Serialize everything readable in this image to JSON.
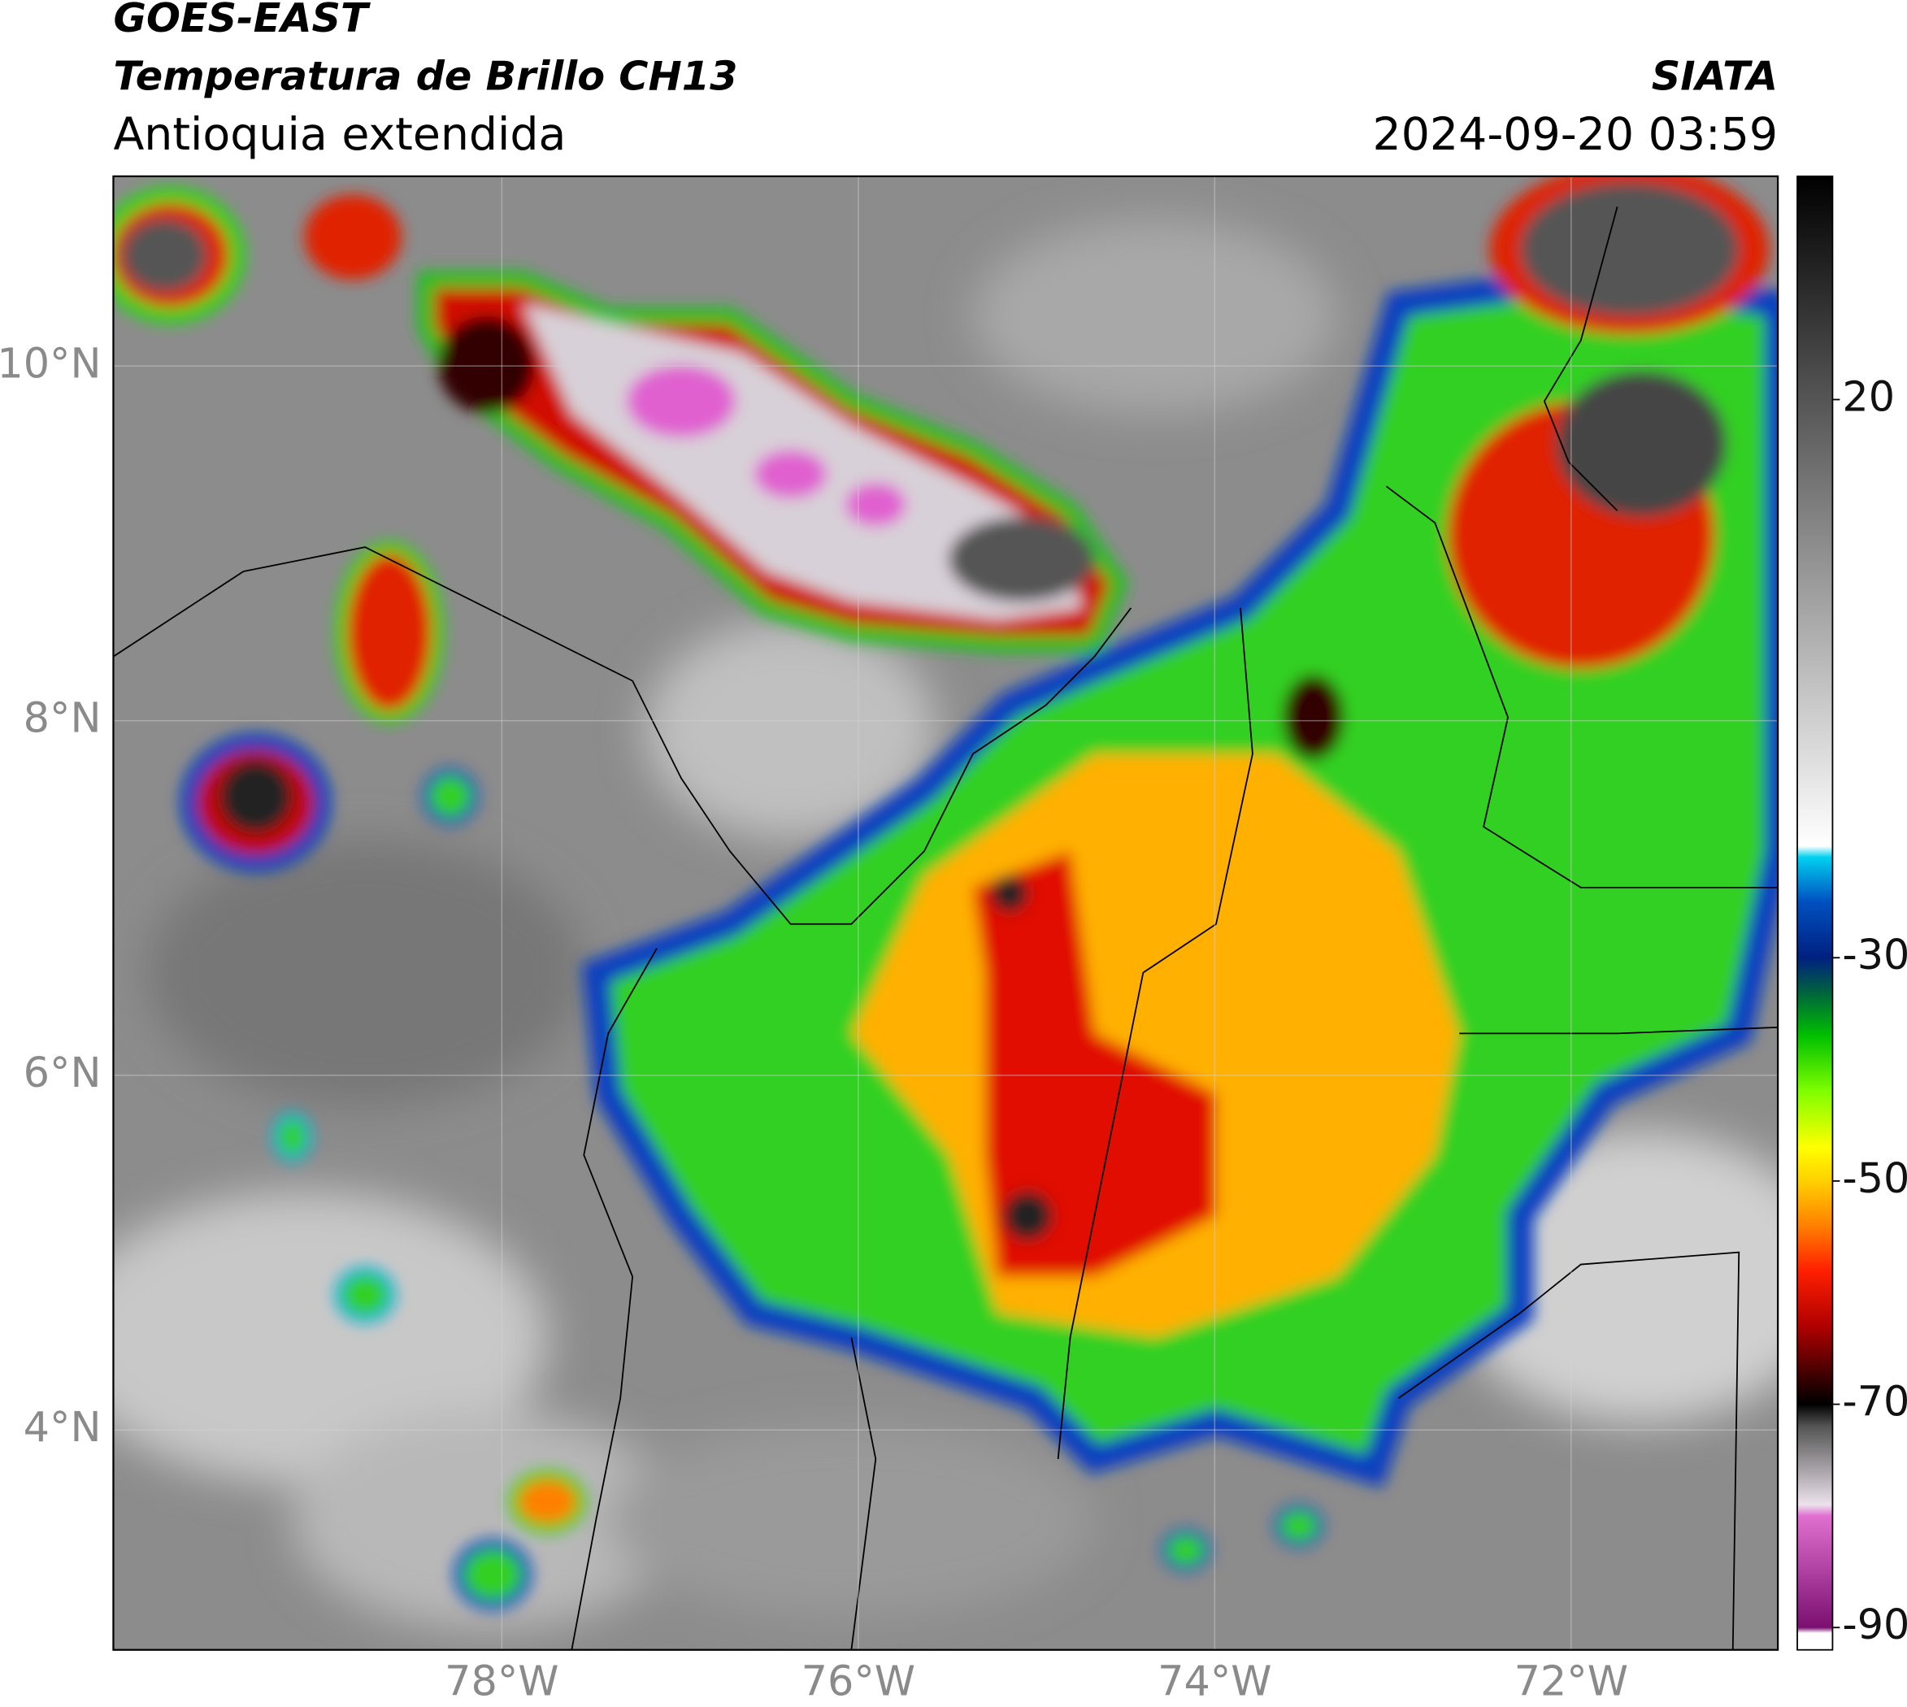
{
  "header": {
    "title": "GOES-EAST",
    "subtitle": "Temperatura de Brillo CH13",
    "region": "Antioquia extendida",
    "source": "SIATA",
    "datetime": "2024-09-20 03:59"
  },
  "map": {
    "xlim": [
      -80.18,
      -70.84
    ],
    "ylim": [
      2.76,
      11.07
    ],
    "xticks": [
      {
        "value": -78,
        "label": "78°W"
      },
      {
        "value": -76,
        "label": "76°W"
      },
      {
        "value": -74,
        "label": "74°W"
      },
      {
        "value": -72,
        "label": "72°W"
      }
    ],
    "yticks": [
      {
        "value": 10,
        "label": "10°N"
      },
      {
        "value": 8,
        "label": "8°N"
      },
      {
        "value": 6,
        "label": "6°N"
      },
      {
        "value": 4,
        "label": "4°N"
      }
    ],
    "grid": true
  },
  "colorbar": {
    "lim": [
      -92,
      40
    ],
    "ticks": [
      20,
      -30,
      -50,
      -70,
      -90
    ],
    "stops": [
      [
        -92,
        "#ffffff"
      ],
      [
        -90.5,
        "#ffffff"
      ],
      [
        -90,
        "#7a1070"
      ],
      [
        -80,
        "#e070d0"
      ],
      [
        -79,
        "#ece2ec"
      ],
      [
        -72,
        "#555555"
      ],
      [
        -70,
        "#000000"
      ],
      [
        -68,
        "#300000"
      ],
      [
        -63,
        "#b00000"
      ],
      [
        -58,
        "#ff2000"
      ],
      [
        -54,
        "#ff8000"
      ],
      [
        -50,
        "#ffd000"
      ],
      [
        -47,
        "#ffff00"
      ],
      [
        -42,
        "#80ff00"
      ],
      [
        -37,
        "#00c000"
      ],
      [
        -33,
        "#006040"
      ],
      [
        -30,
        "#002080"
      ],
      [
        -25,
        "#0050c0"
      ],
      [
        -21,
        "#00d0f0"
      ],
      [
        -20,
        "#ffffff"
      ],
      [
        40,
        "#000000"
      ]
    ]
  }
}
